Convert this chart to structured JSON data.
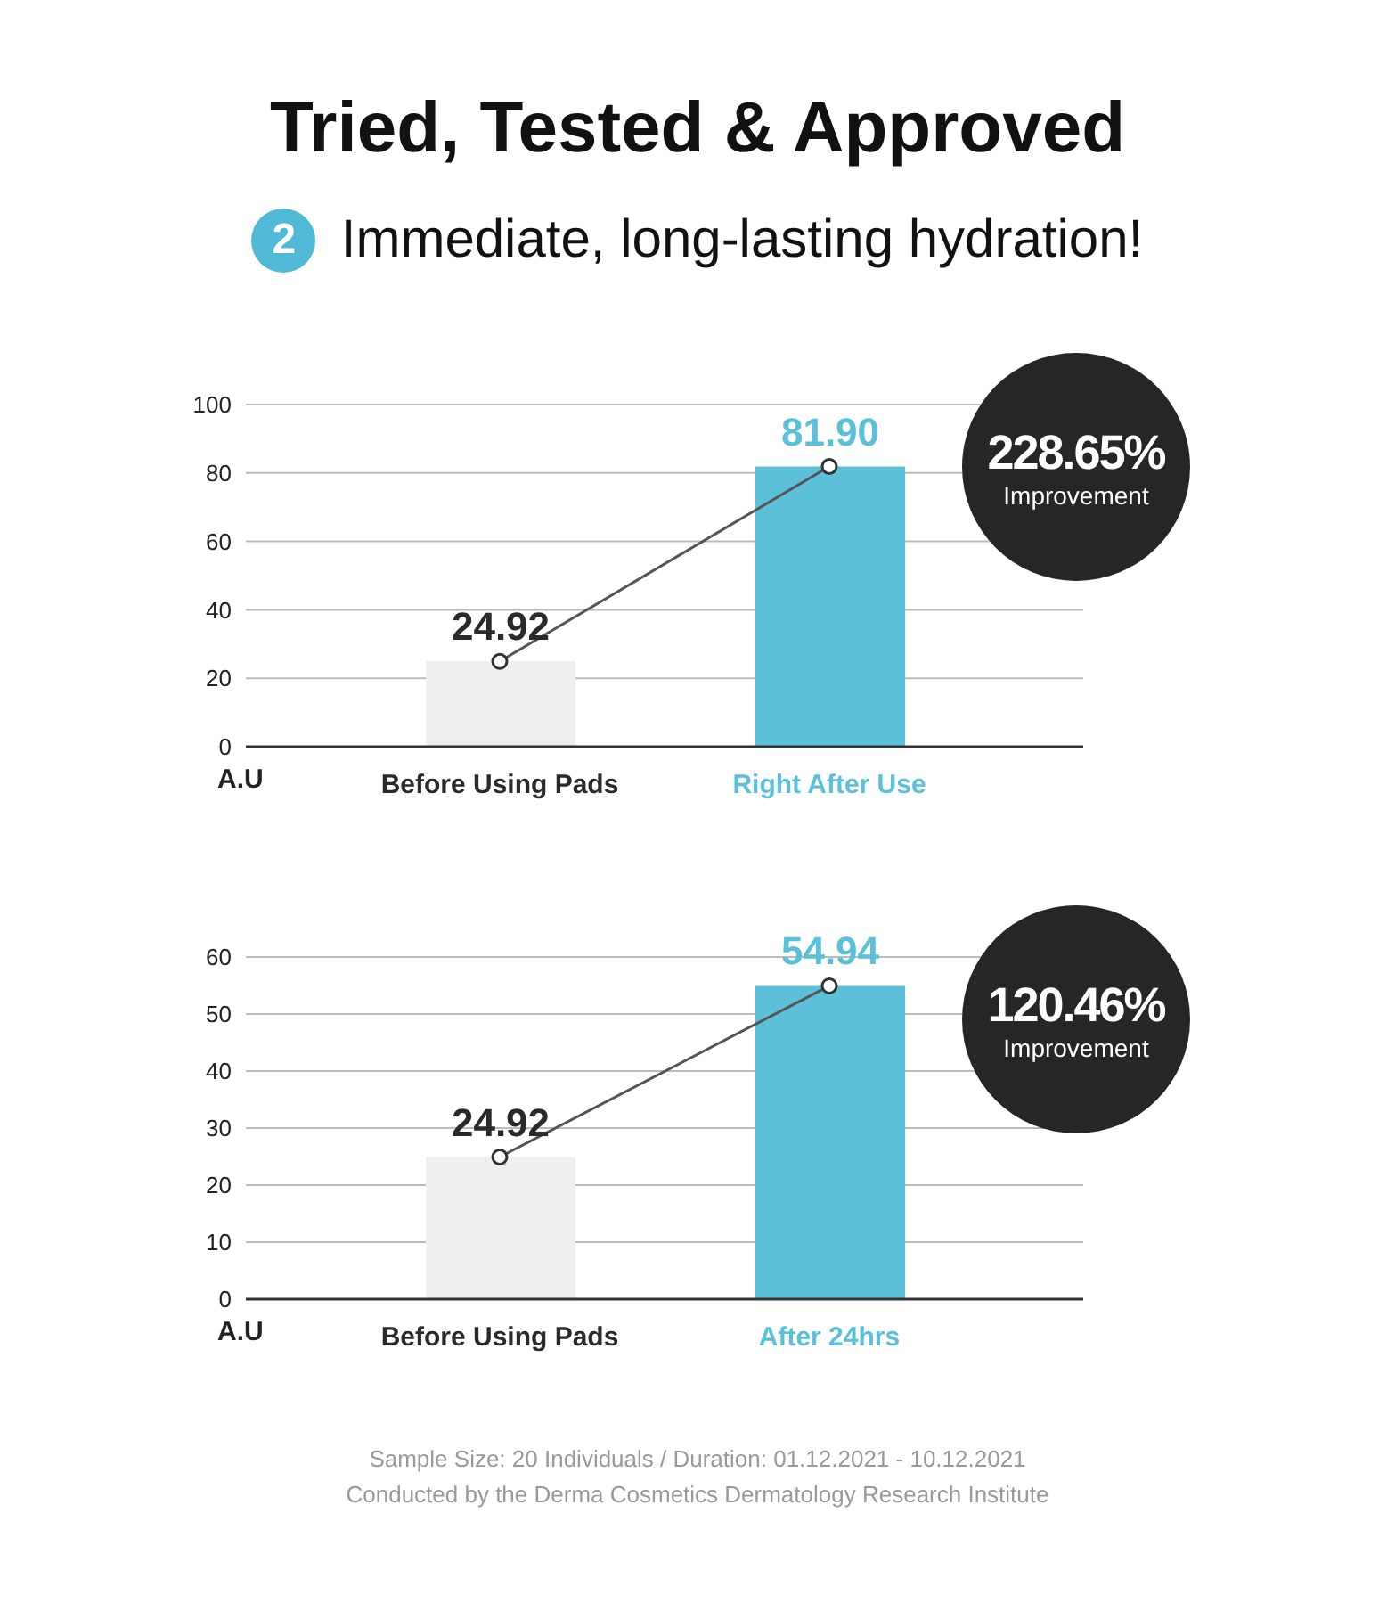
{
  "chart_data": [
    {
      "type": "bar",
      "title": "Tried, Tested & Approved",
      "subtitle": "Immediate, long-lasting hydration!",
      "categories": [
        "Before Using Pads",
        "Right After Use"
      ],
      "series": [
        {
          "colors": [
            "#efefef",
            "#5bc0d8"
          ],
          "values": [
            24.92,
            81.9
          ],
          "value_labels": [
            "24.92",
            "81.90"
          ]
        },
        {
          "type": "line",
          "color": "#555555",
          "values": [
            24.92,
            81.9
          ]
        }
      ],
      "ylim": [
        0,
        100
      ],
      "yticks": [
        0,
        20,
        40,
        60,
        80,
        100
      ],
      "ylabel": "A.U",
      "grid": "y",
      "marker": "circle",
      "annotations": [
        "2",
        "228.65%",
        "Improvement"
      ]
    },
    {
      "type": "bar",
      "categories": [
        "Before Using Pads",
        "After 24hrs"
      ],
      "series": [
        {
          "colors": [
            "#efefef",
            "#5bc0d8"
          ],
          "values": [
            24.92,
            54.94
          ],
          "value_labels": [
            "24.92",
            "54.94"
          ]
        },
        {
          "type": "line",
          "color": "#555555",
          "values": [
            24.92,
            54.94
          ]
        }
      ],
      "ylim": [
        0,
        60
      ],
      "yticks": [
        0,
        10,
        20,
        30,
        40,
        50,
        60
      ],
      "ylabel": "A.U",
      "grid": "y",
      "marker": "circle",
      "annotations": [
        "120.46%",
        "Improvement",
        "Sample Size: 20 Individuals  /  Duration: 01.12.2021 - 10.12.2021",
        "Conducted by the Derma Cosmetics Dermatology Research Institute"
      ]
    }
  ]
}
